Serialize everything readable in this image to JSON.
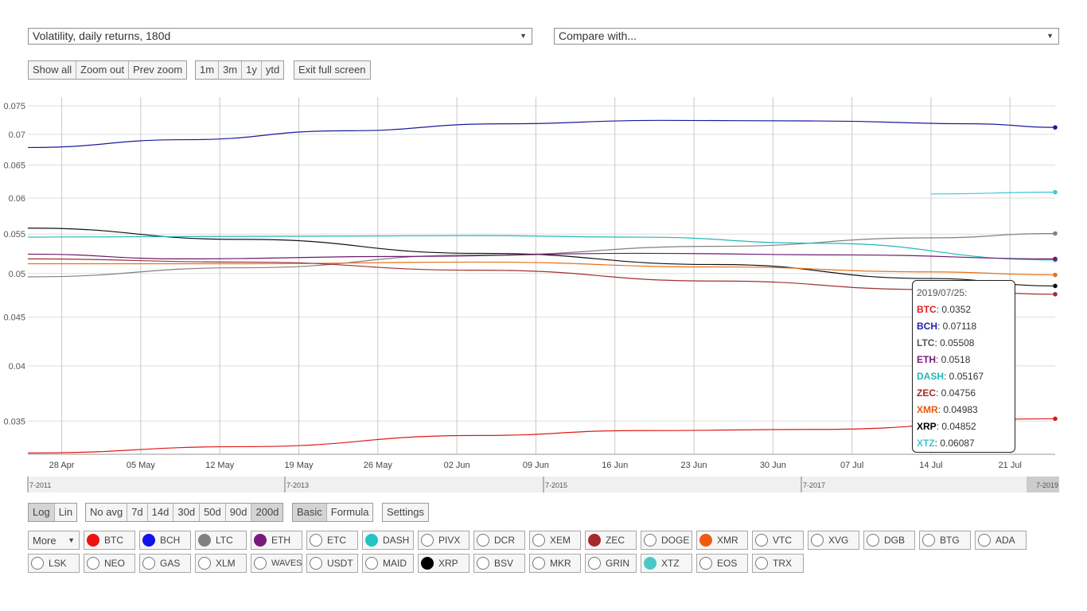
{
  "controls": {
    "metric_select": "Volatility, daily returns, 180d",
    "compare_select": "Compare with...",
    "zoom_buttons": [
      "Show all",
      "Zoom out",
      "Prev zoom"
    ],
    "range_buttons": [
      "1m",
      "3m",
      "1y",
      "ytd"
    ],
    "fullscreen_button": "Exit full screen",
    "scale_buttons": [
      "Log",
      "Lin"
    ],
    "scale_active": "Log",
    "avg_buttons": [
      "No avg",
      "7d",
      "14d",
      "30d",
      "50d",
      "90d",
      "200d"
    ],
    "avg_active": "200d",
    "mode_buttons": [
      "Basic",
      "Formula"
    ],
    "mode_active": "Basic",
    "settings_button": "Settings",
    "more_label": "More"
  },
  "coins": {
    "row1": [
      {
        "name": "BTC",
        "color": "#ee1111"
      },
      {
        "name": "BCH",
        "color": "#1111ee"
      },
      {
        "name": "LTC",
        "color": "#808080"
      },
      {
        "name": "ETH",
        "color": "#7a1a7a"
      },
      {
        "name": "ETC",
        "color": ""
      },
      {
        "name": "DASH",
        "color": "#22c4c4"
      },
      {
        "name": "PIVX",
        "color": ""
      },
      {
        "name": "DCR",
        "color": ""
      },
      {
        "name": "XEM",
        "color": ""
      },
      {
        "name": "ZEC",
        "color": "#a52a2a"
      },
      {
        "name": "DOGE",
        "color": ""
      },
      {
        "name": "XMR",
        "color": "#f05a10"
      },
      {
        "name": "VTC",
        "color": ""
      },
      {
        "name": "XVG",
        "color": ""
      },
      {
        "name": "DGB",
        "color": ""
      },
      {
        "name": "BTG",
        "color": ""
      },
      {
        "name": "ADA",
        "color": ""
      }
    ],
    "row2": [
      {
        "name": "LSK",
        "color": ""
      },
      {
        "name": "NEO",
        "color": ""
      },
      {
        "name": "GAS",
        "color": ""
      },
      {
        "name": "XLM",
        "color": ""
      },
      {
        "name": "WAVES",
        "color": ""
      },
      {
        "name": "USDT",
        "color": ""
      },
      {
        "name": "MAID",
        "color": ""
      },
      {
        "name": "XRP",
        "color": "#000000"
      },
      {
        "name": "BSV",
        "color": ""
      },
      {
        "name": "MKR",
        "color": ""
      },
      {
        "name": "GRIN",
        "color": ""
      },
      {
        "name": "XTZ",
        "color": "#4ac8c8"
      },
      {
        "name": "EOS",
        "color": ""
      },
      {
        "name": "TRX",
        "color": ""
      }
    ]
  },
  "tooltip": {
    "date": "2019/07/25:",
    "rows": [
      {
        "name": "BTC",
        "value": ": 0.0352",
        "color": "#e02020"
      },
      {
        "name": "BCH",
        "value": ": 0.07118",
        "color": "#2222aa"
      },
      {
        "name": "LTC",
        "value": ": 0.05508",
        "color": "#555555"
      },
      {
        "name": "ETH",
        "value": ": 0.0518",
        "color": "#7a1a7a"
      },
      {
        "name": "DASH",
        "value": ": 0.05167",
        "color": "#22b8b8"
      },
      {
        "name": "ZEC",
        "value": ": 0.04756",
        "color": "#a52a2a"
      },
      {
        "name": "XMR",
        "value": ": 0.04983",
        "color": "#e85a10"
      },
      {
        "name": "XRP",
        "value": ": 0.04852",
        "color": "#000000"
      },
      {
        "name": "XTZ",
        "value": ": 0.06087",
        "color": "#3cc8d8"
      }
    ]
  },
  "chart_data": {
    "type": "line",
    "y_scale": "log",
    "ylim": [
      0.0323,
      0.0766
    ],
    "y_ticks": [
      {
        "label": "0.075",
        "value": 0.075
      },
      {
        "label": "0.07",
        "value": 0.07
      },
      {
        "label": "0.065",
        "value": 0.065
      },
      {
        "label": "0.06",
        "value": 0.06
      },
      {
        "label": "0.055",
        "value": 0.055
      },
      {
        "label": "0.05",
        "value": 0.05
      },
      {
        "label": "0.045",
        "value": 0.045
      },
      {
        "label": "0.04",
        "value": 0.04
      },
      {
        "label": "0.035",
        "value": 0.035
      }
    ],
    "x_range": [
      "2019-04-25",
      "2019-07-25"
    ],
    "x_ticks": [
      {
        "label": "28 Apr",
        "date": "2019-04-28"
      },
      {
        "label": "05 May",
        "date": "2019-05-05"
      },
      {
        "label": "12 May",
        "date": "2019-05-12"
      },
      {
        "label": "19 May",
        "date": "2019-05-19"
      },
      {
        "label": "26 May",
        "date": "2019-05-26"
      },
      {
        "label": "02 Jun",
        "date": "2019-06-02"
      },
      {
        "label": "09 Jun",
        "date": "2019-06-09"
      },
      {
        "label": "16 Jun",
        "date": "2019-06-16"
      },
      {
        "label": "23 Jun",
        "date": "2019-06-23"
      },
      {
        "label": "30 Jun",
        "date": "2019-06-30"
      },
      {
        "label": "07 Jul",
        "date": "2019-07-07"
      },
      {
        "label": "14 Jul",
        "date": "2019-07-14"
      },
      {
        "label": "21 Jul",
        "date": "2019-07-21"
      }
    ],
    "grid": true,
    "series": [
      {
        "name": "BCH",
        "color": "#1a1a9e",
        "points": [
          [
            "2019-04-25",
            0.0678
          ],
          [
            "2019-05-09",
            0.0691
          ],
          [
            "2019-05-23",
            0.0706
          ],
          [
            "2019-06-06",
            0.0718
          ],
          [
            "2019-06-20",
            0.0724
          ],
          [
            "2019-07-04",
            0.0723
          ],
          [
            "2019-07-18",
            0.0718
          ],
          [
            "2019-07-25",
            0.07118
          ]
        ]
      },
      {
        "name": "XTZ",
        "color": "#40c4d8",
        "points": [
          [
            "2019-07-14",
            0.0606
          ],
          [
            "2019-07-25",
            0.06087
          ]
        ]
      },
      {
        "name": "LTC",
        "color": "#808080",
        "points": [
          [
            "2019-04-25",
            0.0496
          ],
          [
            "2019-05-14",
            0.0507
          ],
          [
            "2019-06-04",
            0.0523
          ],
          [
            "2019-06-25",
            0.0534
          ],
          [
            "2019-07-14",
            0.0545
          ],
          [
            "2019-07-25",
            0.05508
          ]
        ]
      },
      {
        "name": "XRP",
        "color": "#111111",
        "points": [
          [
            "2019-04-25",
            0.0558
          ],
          [
            "2019-05-14",
            0.0543
          ],
          [
            "2019-06-04",
            0.0525
          ],
          [
            "2019-06-25",
            0.0511
          ],
          [
            "2019-07-14",
            0.0494
          ],
          [
            "2019-07-25",
            0.04852
          ]
        ]
      },
      {
        "name": "DASH",
        "color": "#20b8b8",
        "points": [
          [
            "2019-04-25",
            0.0546
          ],
          [
            "2019-05-14",
            0.0547
          ],
          [
            "2019-06-04",
            0.0548
          ],
          [
            "2019-06-18",
            0.0546
          ],
          [
            "2019-07-04",
            0.0538
          ],
          [
            "2019-07-25",
            0.05167
          ]
        ]
      },
      {
        "name": "ETH",
        "color": "#6b1a6b",
        "points": [
          [
            "2019-04-25",
            0.0524
          ],
          [
            "2019-05-09",
            0.0518
          ],
          [
            "2019-05-28",
            0.0521
          ],
          [
            "2019-06-18",
            0.0525
          ],
          [
            "2019-07-07",
            0.0523
          ],
          [
            "2019-07-25",
            0.0518
          ]
        ]
      },
      {
        "name": "XMR",
        "color": "#e8701a",
        "points": [
          [
            "2019-04-25",
            0.0512
          ],
          [
            "2019-05-14",
            0.0512
          ],
          [
            "2019-06-04",
            0.0514
          ],
          [
            "2019-06-25",
            0.0508
          ],
          [
            "2019-07-14",
            0.0502
          ],
          [
            "2019-07-25",
            0.04983
          ]
        ]
      },
      {
        "name": "ZEC",
        "color": "#a03030",
        "points": [
          [
            "2019-04-25",
            0.0518
          ],
          [
            "2019-05-14",
            0.0514
          ],
          [
            "2019-06-04",
            0.0504
          ],
          [
            "2019-06-25",
            0.0491
          ],
          [
            "2019-07-14",
            0.0481
          ],
          [
            "2019-07-25",
            0.04756
          ]
        ]
      },
      {
        "name": "BTC",
        "color": "#e01818",
        "points": [
          [
            "2019-04-25",
            0.0324
          ],
          [
            "2019-05-14",
            0.0329
          ],
          [
            "2019-06-04",
            0.0338
          ],
          [
            "2019-06-18",
            0.0342
          ],
          [
            "2019-07-04",
            0.0343
          ],
          [
            "2019-07-25",
            0.0352
          ]
        ]
      }
    ],
    "navigator": {
      "labels": [
        "7-2011",
        "7-2013",
        "7-2015",
        "7-2017",
        "7-2019"
      ]
    }
  }
}
